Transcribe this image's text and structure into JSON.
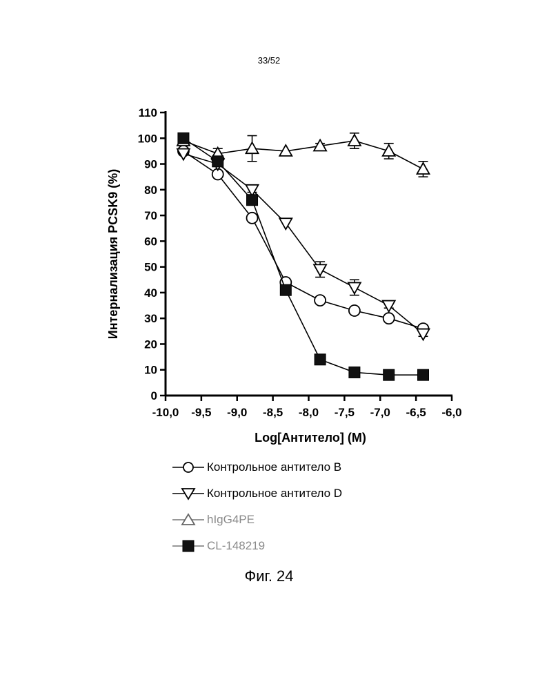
{
  "page_number": "33/52",
  "figure_caption": "Фиг. 24",
  "chart_data": {
    "type": "line",
    "xlabel": "Log[Антитело] (M)",
    "ylabel": "Интернализация PCSK9 (%)",
    "xlim": [
      -10.0,
      -6.0
    ],
    "ylim": [
      0,
      110
    ],
    "x_ticks": [
      "-10,0",
      "-9,5",
      "-9,0",
      "-8,5",
      "-8,0",
      "-7,5",
      "-7,0",
      "-6,5",
      "-6,0"
    ],
    "y_ticks": [
      "0",
      "10",
      "20",
      "30",
      "40",
      "50",
      "60",
      "70",
      "80",
      "90",
      "100",
      "110"
    ],
    "grid": false,
    "legend_position": "bottom",
    "x": [
      -9.75,
      -9.27,
      -8.79,
      -8.32,
      -7.84,
      -7.36,
      -6.88,
      -6.4
    ],
    "series": [
      {
        "name": "Контрольное антитело B",
        "marker": "circle-open",
        "values": [
          95,
          86,
          69,
          44,
          37,
          33,
          30,
          26
        ],
        "errors": [
          0,
          0,
          0,
          0,
          0,
          0,
          0,
          1
        ]
      },
      {
        "name": "Контрольное антитело D",
        "marker": "triangle-down-open",
        "values": [
          94,
          90,
          80,
          67,
          49,
          42,
          35,
          24
        ],
        "errors": [
          0,
          0,
          1,
          0,
          3,
          3,
          1,
          1
        ]
      },
      {
        "name": "hIgG4PE",
        "marker": "triangle-up-open",
        "values": [
          99,
          94,
          96,
          95,
          97,
          99,
          95,
          88
        ],
        "errors": [
          1,
          2,
          5,
          0,
          1,
          3,
          3,
          3
        ]
      },
      {
        "name": "CL-148219",
        "marker": "square-filled",
        "values": [
          100,
          91,
          76,
          41,
          14,
          9,
          8,
          8
        ],
        "errors": [
          1,
          1,
          1,
          1,
          0,
          0,
          0,
          0
        ]
      }
    ]
  }
}
